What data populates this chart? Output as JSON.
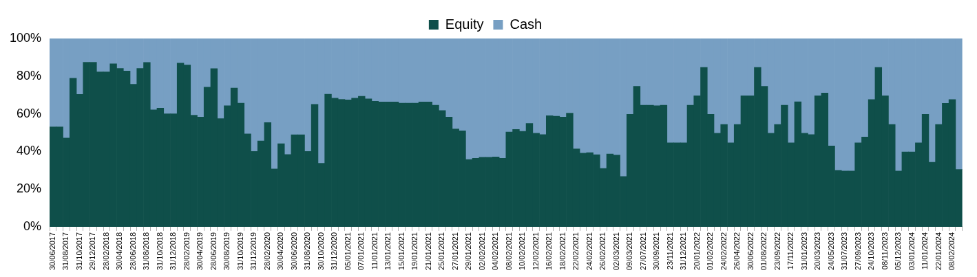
{
  "chart_data": {
    "type": "bar",
    "stacked": true,
    "legend": "top",
    "categories": [
      "30/06/2017",
      null,
      "31/08/2017",
      null,
      "31/10/2017",
      null,
      "29/12/2017",
      null,
      "28/02/2018",
      null,
      "30/04/2018",
      null,
      "28/06/2018",
      null,
      "31/08/2018",
      null,
      "31/10/2018",
      null,
      "31/12/2018",
      null,
      "28/02/2019",
      null,
      "30/04/2019",
      null,
      "28/06/2019",
      null,
      "30/08/2019",
      null,
      "31/10/2019",
      null,
      "31/12/2019",
      null,
      "28/02/2020",
      null,
      "30/04/2020",
      null,
      "30/06/2020",
      null,
      "31/08/2020",
      null,
      "30/10/2020",
      null,
      "31/12/2020",
      null,
      "05/01/2021",
      null,
      "07/01/2021",
      null,
      "11/01/2021",
      null,
      "13/01/2021",
      null,
      "15/01/2021",
      null,
      "19/01/2021",
      null,
      "21/01/2021",
      null,
      "25/01/2021",
      null,
      "27/01/2021",
      null,
      "29/01/2021",
      null,
      "02/02/2021",
      null,
      "04/02/2021",
      null,
      "08/02/2021",
      null,
      "10/02/2021",
      null,
      "12/02/2021",
      null,
      "16/02/2021",
      null,
      "18/02/2021",
      null,
      "22/02/2021",
      null,
      "24/02/2021",
      null,
      "26/02/2021",
      null,
      "02/03/2021",
      null,
      "09/03/2021",
      null,
      "27/07/2021",
      null,
      "30/09/2021",
      null,
      "23/11/2021",
      null,
      "31/12/2021",
      null,
      "20/01/2022",
      null,
      "01/02/2022",
      null,
      "24/02/2022",
      null,
      "26/04/2022",
      null,
      "30/06/2022",
      null,
      "01/08/2022",
      null,
      "23/09/2022",
      null,
      "17/11/2022",
      null,
      "31/01/2023",
      null,
      "20/03/2023",
      null,
      "24/05/2023",
      null,
      "31/07/2023",
      null,
      "27/09/2023",
      null,
      "24/10/2023",
      null,
      "08/11/2023",
      null,
      "05/12/2023",
      null,
      "03/01/2024",
      null,
      "11/01/2024",
      null,
      "22/01/2024",
      null,
      "08/02/2024",
      null
    ],
    "series": [
      {
        "name": "Equity",
        "color": "#0f4f4a",
        "values": [
          53.1,
          53.1,
          47.1,
          78.9,
          70.3,
          87.4,
          87.4,
          82.3,
          82.3,
          86.6,
          84.1,
          82.7,
          75.7,
          84.1,
          87.3,
          62.1,
          63,
          60,
          60,
          86.9,
          85.9,
          59.3,
          58.3,
          74.1,
          84,
          57.4,
          64.3,
          73.7,
          65.7,
          49.3,
          40,
          45.6,
          55.3,
          30.7,
          44.1,
          38.4,
          48.9,
          48.9,
          40,
          65,
          33.7,
          70.4,
          68.3,
          67.7,
          67.4,
          68.3,
          69.3,
          67.9,
          66.7,
          66.3,
          66.3,
          66.3,
          65.7,
          65.7,
          65.7,
          66.3,
          66.3,
          64.6,
          61.7,
          58.3,
          52,
          51,
          35.7,
          36.4,
          36.9,
          36.9,
          37.1,
          36.4,
          50.3,
          51.7,
          50.7,
          54.9,
          49.7,
          49,
          59,
          58.7,
          58.3,
          60.4,
          41.4,
          39.1,
          39.4,
          38.3,
          31,
          38.6,
          38.1,
          26.7,
          59.7,
          74.6,
          64.6,
          64.6,
          64.3,
          64.6,
          44.6,
          44.6,
          44.6,
          64.6,
          69.6,
          84.6,
          59.7,
          49.7,
          54.3,
          44.6,
          54.3,
          69.6,
          69.6,
          84.6,
          74.6,
          49.7,
          54.3,
          64.6,
          44.6,
          66.4,
          49.7,
          49,
          69.6,
          71,
          42.9,
          30,
          29.6,
          29.6,
          44.6,
          47.7,
          67.6,
          84.6,
          69.6,
          54.3,
          29.6,
          39.7,
          39.7,
          44.6,
          59.7,
          34.3,
          54.3,
          65.6,
          67.6,
          30.4
        ]
      },
      {
        "name": "Cash",
        "color": "#779fc3",
        "values": [
          46.9,
          46.9,
          52.9,
          21.1,
          29.7,
          12.6,
          12.6,
          17.7,
          17.7,
          13.4,
          15.9,
          17.3,
          24.3,
          15.9,
          12.7,
          37.9,
          37,
          40,
          40,
          13.1,
          14.1,
          40.7,
          41.7,
          25.9,
          16,
          42.6,
          35.7,
          26.3,
          34.3,
          50.7,
          60,
          54.4,
          44.7,
          69.3,
          55.9,
          61.6,
          51.1,
          51.1,
          60,
          35,
          66.3,
          29.6,
          31.7,
          32.3,
          32.6,
          31.7,
          30.7,
          32.1,
          33.3,
          33.7,
          33.7,
          33.7,
          34.3,
          34.3,
          34.3,
          33.7,
          33.7,
          35.4,
          38.3,
          41.7,
          48,
          49,
          64.3,
          63.6,
          63.1,
          63.1,
          62.9,
          63.6,
          49.7,
          48.3,
          49.3,
          45.1,
          50.3,
          51,
          41,
          41.3,
          41.7,
          39.6,
          58.6,
          60.9,
          60.6,
          61.7,
          69,
          61.4,
          61.9,
          73.3,
          40.3,
          25.4,
          35.4,
          35.4,
          35.7,
          35.4,
          55.4,
          55.4,
          55.4,
          35.4,
          30.4,
          15.4,
          40.3,
          50.3,
          45.7,
          55.4,
          45.7,
          30.4,
          30.4,
          15.4,
          25.4,
          50.3,
          45.7,
          35.4,
          55.4,
          33.6,
          50.3,
          51,
          30.4,
          29,
          57.1,
          70,
          70.4,
          70.4,
          55.4,
          52.3,
          32.4,
          15.4,
          30.4,
          45.7,
          70.4,
          60.3,
          60.3,
          55.4,
          40.3,
          65.7,
          45.7,
          34.4,
          32.4,
          69.6
        ]
      }
    ],
    "ylim": [
      0,
      100
    ],
    "yticks": [
      {
        "value": 0,
        "label": "0%"
      },
      {
        "value": 20,
        "label": "20%"
      },
      {
        "value": 40,
        "label": "40%"
      },
      {
        "value": 60,
        "label": "60%"
      },
      {
        "value": 80,
        "label": "80%"
      },
      {
        "value": 100,
        "label": "100%"
      }
    ]
  }
}
